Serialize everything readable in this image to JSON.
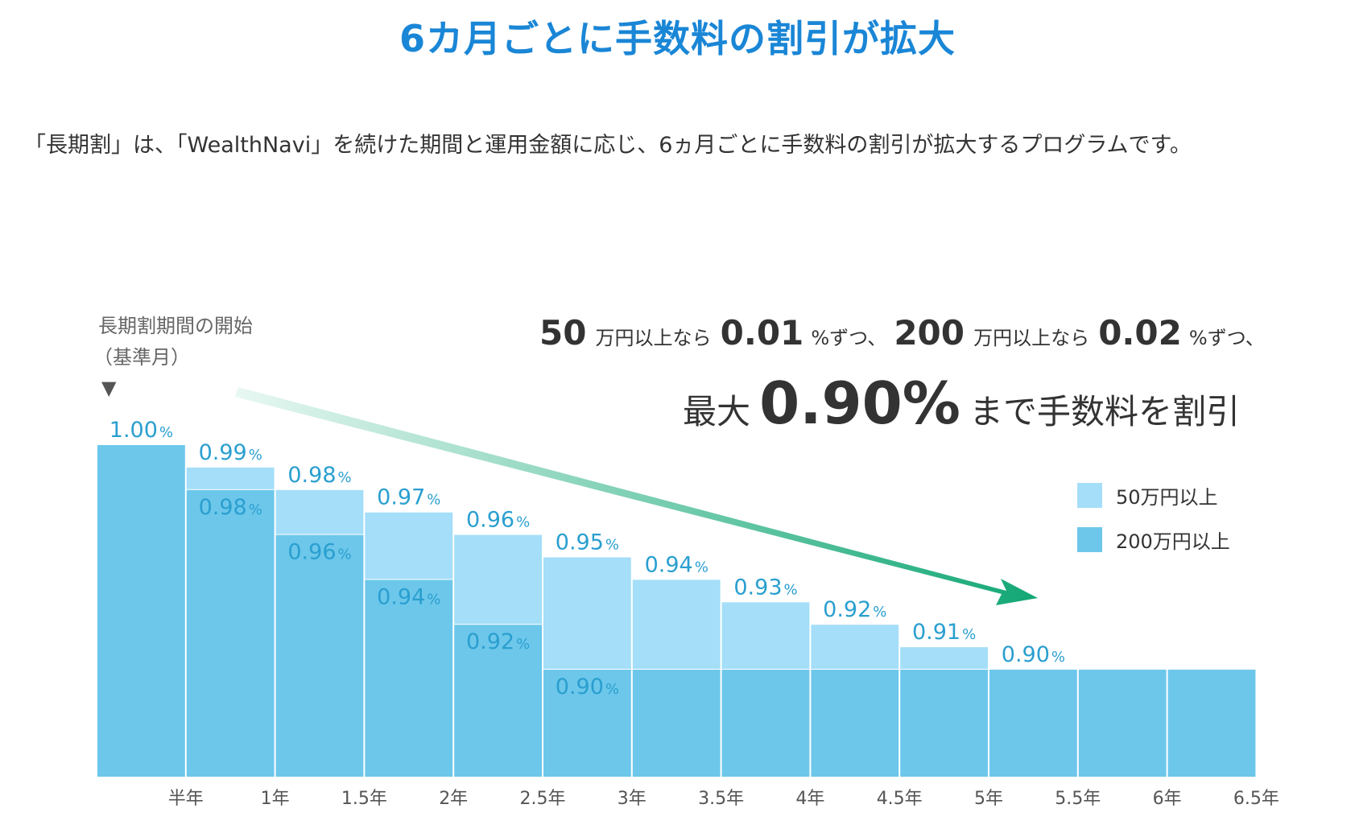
{
  "title": "6カ月ごとに手数料の割引が拡大",
  "intro": "「長期割」は、「WealthNavi」を続けた期間と運用金額に応じ、6ヵ月ごとに手数料の割引が拡大するプログラムです。",
  "annotations": {
    "start_label_1": "長期割期間の開始",
    "start_label_2": "（基準月）",
    "start_marker": "▼",
    "headline": {
      "amount_1": "50",
      "unit_1": "万円以上なら",
      "rate_1": "0.01",
      "suffix_1": "%ずつ、",
      "amount_2": "200",
      "unit_2": "万円以上なら",
      "rate_2": "0.02",
      "suffix_2": "%ずつ、"
    },
    "headline2": {
      "prefix": "最大",
      "rate": "0.90%",
      "suffix": "まで手数料を割引"
    }
  },
  "colors": {
    "title": "#1a86d6",
    "bar_50": "#a4def8",
    "bar_200": "#6cc7ea",
    "value_label": "#2a9fd0",
    "arrow_start": "#e8f8f2",
    "arrow_end": "#12a775"
  },
  "chart_data": {
    "type": "bar",
    "x_tick_labels": [
      "",
      "半年",
      "1年",
      "1.5年",
      "2年",
      "2.5年",
      "3年",
      "3.5年",
      "4年",
      "4.5年",
      "5年",
      "5.5年",
      "6年",
      "6.5年"
    ],
    "series": [
      {
        "name": "50万円以上",
        "values": [
          1.0,
          0.99,
          0.98,
          0.97,
          0.96,
          0.95,
          0.94,
          0.93,
          0.92,
          0.91,
          0.9,
          0.9,
          0.9
        ],
        "labels": [
          "1.00",
          "0.99",
          "0.98",
          "0.97",
          "0.96",
          "0.95",
          "0.94",
          "0.93",
          "0.92",
          "0.91",
          "0.90",
          "",
          ""
        ]
      },
      {
        "name": "200万円以上",
        "values": [
          1.0,
          0.98,
          0.96,
          0.94,
          0.92,
          0.9,
          0.9,
          0.9,
          0.9,
          0.9,
          0.9,
          0.9,
          0.9
        ],
        "labels": [
          "",
          "0.98",
          "0.96",
          "0.94",
          "0.92",
          "0.90",
          "",
          "",
          "",
          "",
          "",
          "",
          ""
        ]
      }
    ],
    "label_unit": "%",
    "ylim": [
      0.85,
      1.0
    ],
    "legend": {
      "placement": "right",
      "items": [
        {
          "label": "50万円以上",
          "color": "#a4def8"
        },
        {
          "label": "200万円以上",
          "color": "#6cc7ea"
        }
      ]
    }
  }
}
